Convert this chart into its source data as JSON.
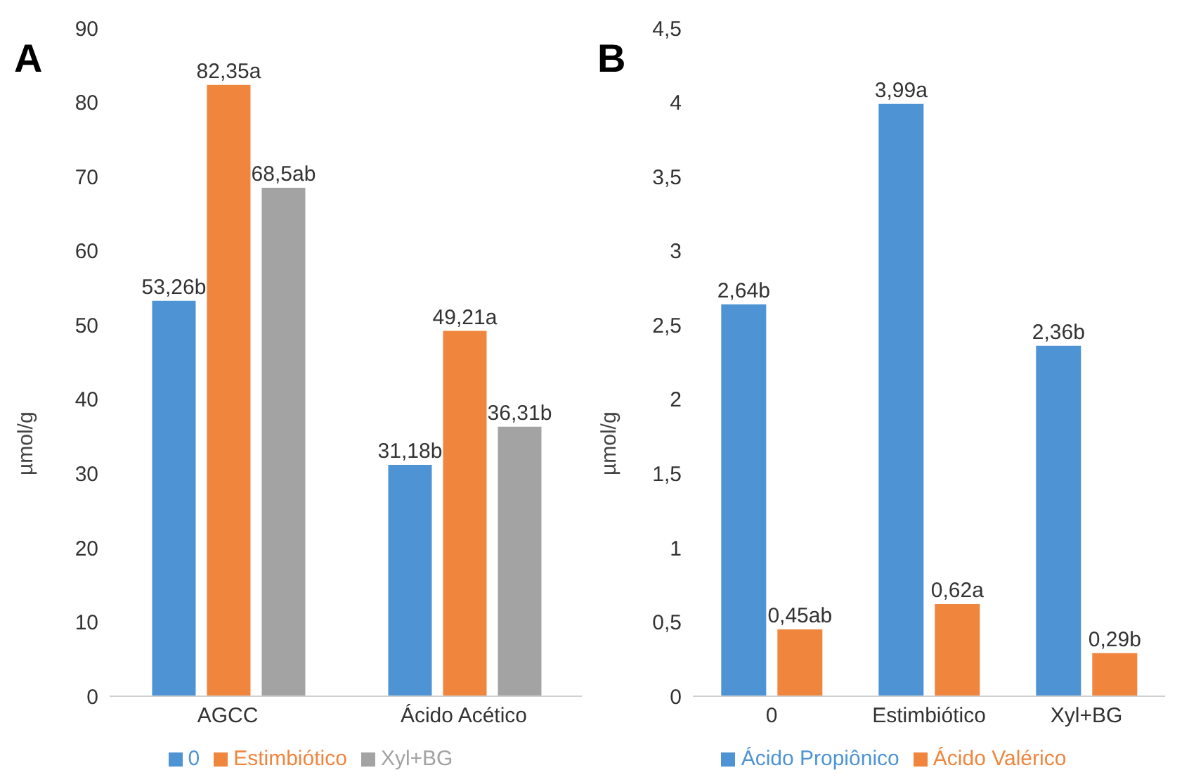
{
  "chart_data": [
    {
      "type": "bar",
      "title": "A",
      "ylabel": "µmol/g",
      "categories": [
        "AGCC",
        "Ácido Acético"
      ],
      "ylim": [
        0,
        90
      ],
      "yticks": [
        0,
        10,
        20,
        30,
        40,
        50,
        60,
        70,
        80,
        90
      ],
      "grid": false,
      "legend": "bottom",
      "series": [
        {
          "name": "0",
          "color": "#4e94d4",
          "values": [
            53.26,
            31.18
          ],
          "value_labels": [
            "53,26b",
            "31,18b"
          ]
        },
        {
          "name": "Estimbiótico",
          "color": "#f0853e",
          "values": [
            82.35,
            49.21
          ],
          "value_labels": [
            "82,35a",
            "49,21a"
          ]
        },
        {
          "name": "Xyl+BG",
          "color": "#a3a3a3",
          "values": [
            68.5,
            36.31
          ],
          "value_labels": [
            "68,5ab",
            "36,31b"
          ]
        }
      ]
    },
    {
      "type": "bar",
      "title": "B",
      "ylabel": "µmol/g",
      "categories": [
        "0",
        "Estimbiótico",
        "Xyl+BG"
      ],
      "ylim": [
        0,
        4.5
      ],
      "yticks": [
        0,
        {
          "value": 0.5,
          "label": "0,5"
        },
        1,
        {
          "value": 1.5,
          "label": "1,5"
        },
        2,
        {
          "value": 2.5,
          "label": "2,5"
        },
        3,
        {
          "value": 3.5,
          "label": "3,5"
        },
        4,
        {
          "value": 4.5,
          "label": "4,5"
        }
      ],
      "grid": false,
      "legend": "bottom",
      "series": [
        {
          "name": "Ácido Propiônico",
          "color": "#4e94d4",
          "values": [
            2.64,
            3.99,
            2.36
          ],
          "value_labels": [
            "2,64b",
            "3,99a",
            "2,36b"
          ]
        },
        {
          "name": "Ácido Valérico",
          "color": "#f0853e",
          "values": [
            0.45,
            0.62,
            0.29
          ],
          "value_labels": [
            "0,45ab",
            "0,62a",
            "0,29b"
          ]
        }
      ]
    }
  ]
}
